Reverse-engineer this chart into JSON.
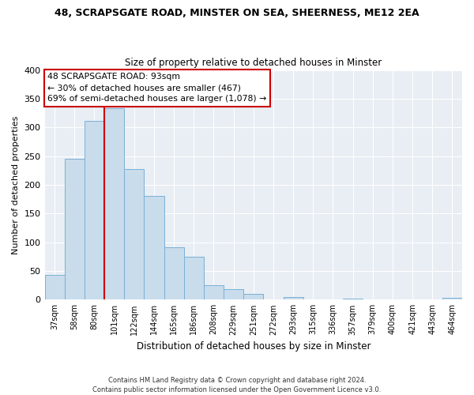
{
  "title": "48, SCRAPSGATE ROAD, MINSTER ON SEA, SHEERNESS, ME12 2EA",
  "subtitle": "Size of property relative to detached houses in Minster",
  "xlabel": "Distribution of detached houses by size in Minster",
  "ylabel": "Number of detached properties",
  "bin_labels": [
    "37sqm",
    "58sqm",
    "80sqm",
    "101sqm",
    "122sqm",
    "144sqm",
    "165sqm",
    "186sqm",
    "208sqm",
    "229sqm",
    "251sqm",
    "272sqm",
    "293sqm",
    "315sqm",
    "336sqm",
    "357sqm",
    "379sqm",
    "400sqm",
    "421sqm",
    "443sqm",
    "464sqm"
  ],
  "bar_heights": [
    43,
    245,
    312,
    333,
    228,
    180,
    91,
    75,
    25,
    18,
    10,
    0,
    5,
    0,
    0,
    2,
    0,
    0,
    0,
    0,
    3
  ],
  "bar_color": "#c8dcec",
  "bar_edge_color": "#7bafd4",
  "vline_x_index": 3,
  "vline_color": "#cc0000",
  "annotation_text": "48 SCRAPSGATE ROAD: 93sqm\n← 30% of detached houses are smaller (467)\n69% of semi-detached houses are larger (1,078) →",
  "annotation_box_color": "#ffffff",
  "annotation_box_edge": "#cc0000",
  "ylim": [
    0,
    400
  ],
  "yticks": [
    0,
    50,
    100,
    150,
    200,
    250,
    300,
    350,
    400
  ],
  "footer_text": "Contains HM Land Registry data © Crown copyright and database right 2024.\nContains public sector information licensed under the Open Government Licence v3.0.",
  "background_color": "#e8eef4",
  "grid_color": "#ffffff"
}
